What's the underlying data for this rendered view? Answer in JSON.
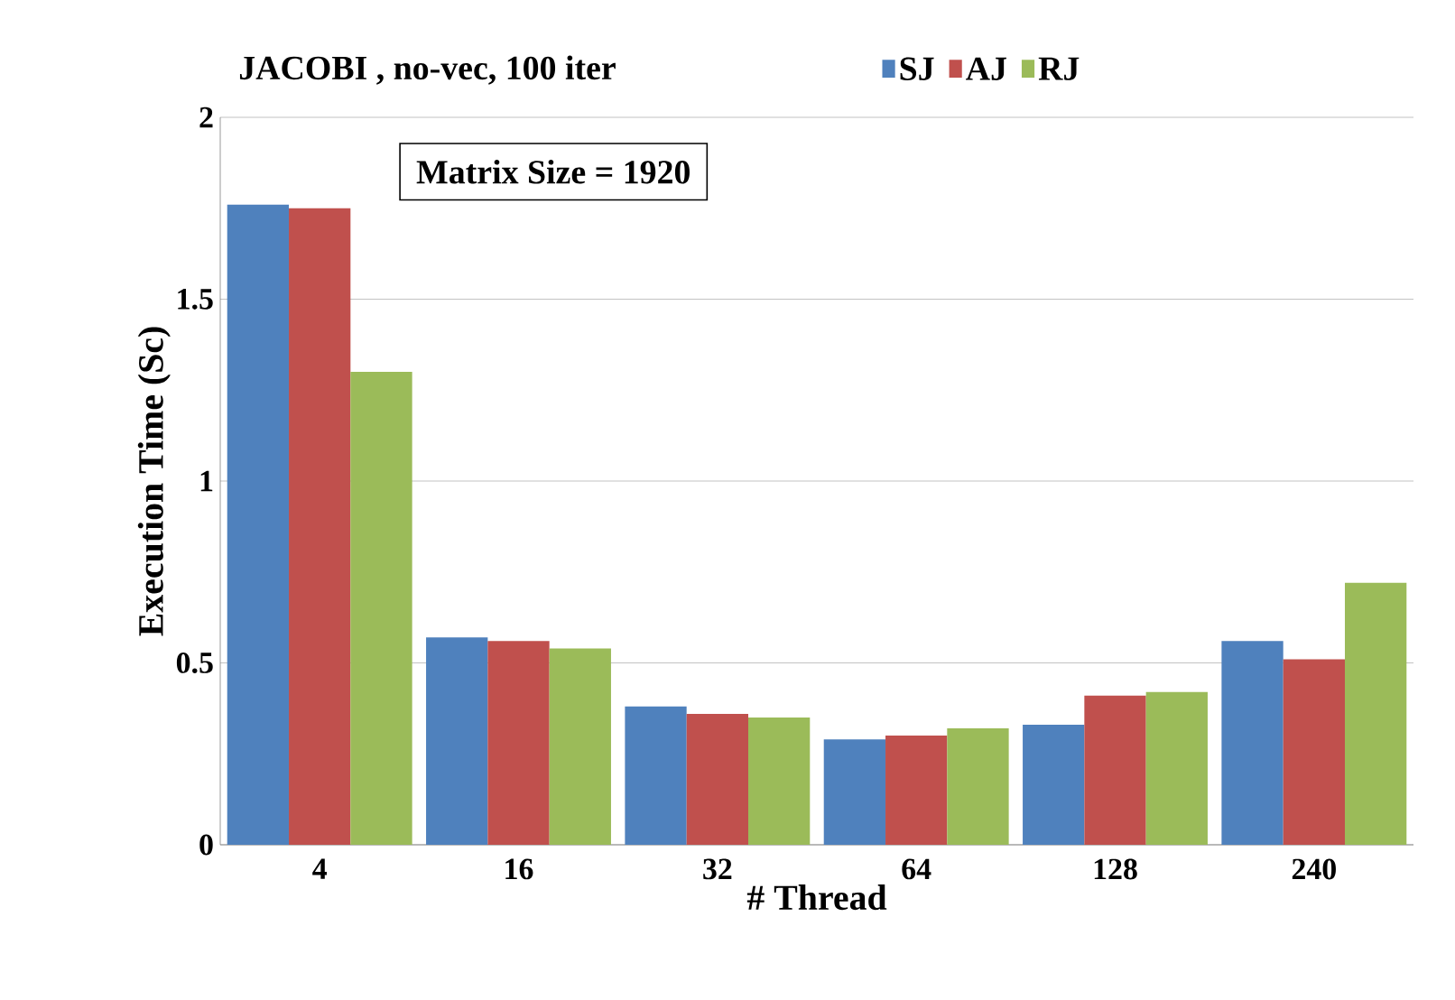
{
  "chart_data": {
    "type": "bar",
    "title": "JACOBI , no-vec, 100 iter",
    "xlabel": "# Thread",
    "ylabel": "Execution Time (Sc)",
    "categories": [
      "4",
      "16",
      "32",
      "64",
      "128",
      "240"
    ],
    "series": [
      {
        "name": "SJ",
        "color": "#4f81bd",
        "values": [
          1.76,
          0.57,
          0.38,
          0.29,
          0.33,
          0.56
        ]
      },
      {
        "name": "AJ",
        "color": "#c0504d",
        "values": [
          1.75,
          0.56,
          0.36,
          0.3,
          0.41,
          0.51
        ]
      },
      {
        "name": "RJ",
        "color": "#9bbb59",
        "values": [
          1.3,
          0.54,
          0.35,
          0.32,
          0.42,
          0.72
        ]
      }
    ],
    "ylim": [
      0,
      2
    ],
    "yticks": [
      0,
      0.5,
      1,
      1.5,
      2
    ],
    "grid": "y",
    "legend": "top right",
    "annotations": [
      "Matrix Size = 1920"
    ]
  }
}
